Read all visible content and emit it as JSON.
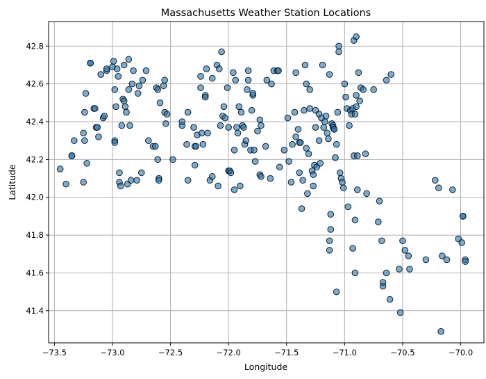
{
  "chart_data": {
    "type": "scatter",
    "title": "Massachusetts Weather Station Locations",
    "xlabel": "Longitude",
    "ylabel": "Latitude",
    "xlim": [
      -73.55,
      -69.8
    ],
    "ylim": [
      41.23,
      42.93
    ],
    "xticks": [
      -73.5,
      -73.0,
      -72.5,
      -72.0,
      -71.5,
      -71.0,
      -70.5,
      -70.0
    ],
    "xtick_labels": [
      "−73.5",
      "−73.0",
      "−72.5",
      "−72.0",
      "−71.5",
      "−71.0",
      "−70.5",
      "−70.0"
    ],
    "yticks": [
      41.4,
      41.6,
      41.8,
      42.0,
      42.2,
      42.4,
      42.6,
      42.8
    ],
    "ytick_labels": [
      "41.4",
      "41.6",
      "41.8",
      "42.0",
      "42.2",
      "42.4",
      "42.6",
      "42.8"
    ],
    "grid": true,
    "marker_fill": "#1f77b4",
    "marker_edge": "#000000",
    "marker_alpha": 0.6,
    "points": [
      [
        -73.45,
        42.15
      ],
      [
        -73.4,
        42.07
      ],
      [
        -73.35,
        42.22
      ],
      [
        -73.35,
        42.22
      ],
      [
        -73.33,
        42.3
      ],
      [
        -73.25,
        42.34
      ],
      [
        -73.25,
        42.08
      ],
      [
        -73.24,
        42.3
      ],
      [
        -73.24,
        42.45
      ],
      [
        -73.23,
        42.55
      ],
      [
        -73.22,
        42.18
      ],
      [
        -73.19,
        42.71
      ],
      [
        -73.19,
        42.71
      ],
      [
        -73.16,
        42.47
      ],
      [
        -73.15,
        42.47
      ],
      [
        -73.14,
        42.37
      ],
      [
        -73.13,
        42.37
      ],
      [
        -73.12,
        42.32
      ],
      [
        -73.1,
        42.65
      ],
      [
        -73.08,
        42.42
      ],
      [
        -73.07,
        42.43
      ],
      [
        -73.05,
        42.67
      ],
      [
        -73.05,
        42.68
      ],
      [
        -73.0,
        42.69
      ],
      [
        -72.99,
        42.72
      ],
      [
        -72.98,
        42.57
      ],
      [
        -72.98,
        42.3
      ],
      [
        -72.98,
        42.29
      ],
      [
        -72.97,
        42.48
      ],
      [
        -72.96,
        42.68
      ],
      [
        -72.95,
        42.64
      ],
      [
        -72.94,
        42.13
      ],
      [
        -72.94,
        42.08
      ],
      [
        -72.93,
        42.06
      ],
      [
        -72.92,
        42.38
      ],
      [
        -72.91,
        42.52
      ],
      [
        -72.9,
        42.51
      ],
      [
        -72.9,
        42.7
      ],
      [
        -72.89,
        42.48
      ],
      [
        -72.88,
        42.45
      ],
      [
        -72.87,
        42.07
      ],
      [
        -72.86,
        42.73
      ],
      [
        -72.86,
        42.57
      ],
      [
        -72.85,
        42.38
      ],
      [
        -72.84,
        42.09
      ],
      [
        -72.83,
        42.6
      ],
      [
        -72.82,
        42.67
      ],
      [
        -72.79,
        42.09
      ],
      [
        -72.78,
        42.55
      ],
      [
        -72.77,
        42.59
      ],
      [
        -72.75,
        42.13
      ],
      [
        -72.74,
        42.62
      ],
      [
        -72.71,
        42.67
      ],
      [
        -72.69,
        42.3
      ],
      [
        -72.65,
        42.27
      ],
      [
        -72.63,
        42.27
      ],
      [
        -72.62,
        42.58
      ],
      [
        -72.61,
        42.57
      ],
      [
        -72.61,
        42.2
      ],
      [
        -72.6,
        42.1
      ],
      [
        -72.6,
        42.09
      ],
      [
        -72.59,
        42.5
      ],
      [
        -72.56,
        42.59
      ],
      [
        -72.55,
        42.45
      ],
      [
        -72.55,
        42.62
      ],
      [
        -72.54,
        42.39
      ],
      [
        -72.53,
        42.44
      ],
      [
        -72.48,
        42.2
      ],
      [
        -72.4,
        42.38
      ],
      [
        -72.4,
        42.4
      ],
      [
        -72.36,
        42.28
      ],
      [
        -72.35,
        42.09
      ],
      [
        -72.35,
        42.45
      ],
      [
        -72.3,
        42.37
      ],
      [
        -72.29,
        42.27
      ],
      [
        -72.29,
        42.17
      ],
      [
        -72.28,
        42.27
      ],
      [
        -72.27,
        42.33
      ],
      [
        -72.24,
        42.58
      ],
      [
        -72.24,
        42.64
      ],
      [
        -72.23,
        42.34
      ],
      [
        -72.22,
        42.28
      ],
      [
        -72.2,
        42.54
      ],
      [
        -72.2,
        42.53
      ],
      [
        -72.19,
        42.68
      ],
      [
        -72.18,
        42.34
      ],
      [
        -72.16,
        42.09
      ],
      [
        -72.14,
        42.63
      ],
      [
        -72.14,
        42.11
      ],
      [
        -72.1,
        42.7
      ],
      [
        -72.09,
        42.06
      ],
      [
        -72.08,
        42.68
      ],
      [
        -72.07,
        42.38
      ],
      [
        -72.06,
        42.77
      ],
      [
        -72.05,
        42.43
      ],
      [
        -72.04,
        42.48
      ],
      [
        -72.03,
        42.42
      ],
      [
        -72.01,
        42.58
      ],
      [
        -72.0,
        42.37
      ],
      [
        -72.0,
        42.14
      ],
      [
        -71.99,
        42.14
      ],
      [
        -71.98,
        42.13
      ],
      [
        -71.96,
        42.66
      ],
      [
        -71.95,
        42.25
      ],
      [
        -71.95,
        42.04
      ],
      [
        -71.94,
        42.62
      ],
      [
        -71.93,
        42.37
      ],
      [
        -71.92,
        42.34
      ],
      [
        -71.91,
        42.48
      ],
      [
        -71.9,
        42.06
      ],
      [
        -71.89,
        42.45
      ],
      [
        -71.88,
        42.38
      ],
      [
        -71.87,
        42.37
      ],
      [
        -71.86,
        42.28
      ],
      [
        -71.85,
        42.3
      ],
      [
        -71.84,
        42.57
      ],
      [
        -71.83,
        42.67
      ],
      [
        -71.83,
        42.62
      ],
      [
        -71.81,
        42.25
      ],
      [
        -71.8,
        42.46
      ],
      [
        -71.79,
        42.54
      ],
      [
        -71.79,
        42.55
      ],
      [
        -71.78,
        42.25
      ],
      [
        -71.77,
        42.19
      ],
      [
        -71.75,
        42.35
      ],
      [
        -71.73,
        42.41
      ],
      [
        -71.73,
        42.12
      ],
      [
        -71.72,
        42.38
      ],
      [
        -71.72,
        42.11
      ],
      [
        -71.68,
        42.27
      ],
      [
        -71.67,
        42.62
      ],
      [
        -71.64,
        42.1
      ],
      [
        -71.63,
        42.6
      ],
      [
        -71.61,
        42.67
      ],
      [
        -71.58,
        42.67
      ],
      [
        -71.57,
        42.67
      ],
      [
        -71.56,
        42.16
      ],
      [
        -71.52,
        42.25
      ],
      [
        -71.49,
        42.42
      ],
      [
        -71.48,
        42.19
      ],
      [
        -71.46,
        42.08
      ],
      [
        -71.45,
        42.28
      ],
      [
        -71.43,
        42.45
      ],
      [
        -71.42,
        42.66
      ],
      [
        -71.42,
        42.32
      ],
      [
        -71.4,
        42.36
      ],
      [
        -71.39,
        42.29
      ],
      [
        -71.39,
        42.13
      ],
      [
        -71.38,
        42.29
      ],
      [
        -71.37,
        41.94
      ],
      [
        -71.36,
        42.09
      ],
      [
        -71.35,
        42.46
      ],
      [
        -71.34,
        42.7
      ],
      [
        -71.33,
        42.6
      ],
      [
        -71.33,
        42.26
      ],
      [
        -71.32,
        42.02
      ],
      [
        -71.31,
        42.23
      ],
      [
        -71.3,
        42.47
      ],
      [
        -71.3,
        42.57
      ],
      [
        -71.28,
        42.14
      ],
      [
        -71.27,
        42.12
      ],
      [
        -71.27,
        42.06
      ],
      [
        -71.26,
        42.17
      ],
      [
        -71.25,
        42.46
      ],
      [
        -71.25,
        42.37
      ],
      [
        -71.24,
        42.16
      ],
      [
        -71.22,
        42.44
      ],
      [
        -71.22,
        42.3
      ],
      [
        -71.21,
        42.18
      ],
      [
        -71.2,
        42.42
      ],
      [
        -71.19,
        42.7
      ],
      [
        -71.18,
        42.37
      ],
      [
        -71.17,
        42.4
      ],
      [
        -71.16,
        42.43
      ],
      [
        -71.15,
        42.34
      ],
      [
        -71.14,
        42.31
      ],
      [
        -71.13,
        42.65
      ],
      [
        -71.13,
        41.72
      ],
      [
        -71.13,
        41.77
      ],
      [
        -71.12,
        41.83
      ],
      [
        -71.12,
        41.91
      ],
      [
        -71.11,
        42.39
      ],
      [
        -71.1,
        42.38
      ],
      [
        -71.1,
        42.37
      ],
      [
        -71.09,
        42.36
      ],
      [
        -71.09,
        42.36
      ],
      [
        -71.08,
        42.21
      ],
      [
        -71.07,
        42.28
      ],
      [
        -71.07,
        41.5
      ],
      [
        -71.06,
        42.45
      ],
      [
        -71.05,
        42.8
      ],
      [
        -71.05,
        42.77
      ],
      [
        -71.04,
        42.13
      ],
      [
        -71.03,
        42.1
      ],
      [
        -71.02,
        42.08
      ],
      [
        -71.01,
        42.05
      ],
      [
        -71.0,
        42.6
      ],
      [
        -70.99,
        42.53
      ],
      [
        -70.98,
        42.47
      ],
      [
        -70.97,
        41.95
      ],
      [
        -70.96,
        42.38
      ],
      [
        -70.95,
        42.46
      ],
      [
        -70.94,
        42.44
      ],
      [
        -70.93,
        42.47
      ],
      [
        -70.93,
        41.73
      ],
      [
        -70.92,
        42.83
      ],
      [
        -70.92,
        42.22
      ],
      [
        -70.91,
        42.44
      ],
      [
        -70.91,
        41.88
      ],
      [
        -70.91,
        41.6
      ],
      [
        -70.9,
        42.85
      ],
      [
        -70.9,
        42.48
      ],
      [
        -70.9,
        42.54
      ],
      [
        -70.89,
        42.22
      ],
      [
        -70.89,
        42.04
      ],
      [
        -70.88,
        42.66
      ],
      [
        -70.87,
        42.51
      ],
      [
        -70.86,
        42.58
      ],
      [
        -70.84,
        42.57
      ],
      [
        -70.82,
        42.23
      ],
      [
        -70.81,
        42.02
      ],
      [
        -70.75,
        42.57
      ],
      [
        -70.71,
        41.87
      ],
      [
        -70.7,
        41.98
      ],
      [
        -70.68,
        41.77
      ],
      [
        -70.67,
        41.53
      ],
      [
        -70.67,
        41.55
      ],
      [
        -70.64,
        41.6
      ],
      [
        -70.64,
        42.62
      ],
      [
        -70.61,
        41.46
      ],
      [
        -70.6,
        42.65
      ],
      [
        -70.53,
        41.62
      ],
      [
        -70.52,
        41.39
      ],
      [
        -70.5,
        41.77
      ],
      [
        -70.48,
        41.72
      ],
      [
        -70.45,
        41.69
      ],
      [
        -70.44,
        41.62
      ],
      [
        -70.3,
        41.67
      ],
      [
        -70.22,
        42.09
      ],
      [
        -70.19,
        42.05
      ],
      [
        -70.17,
        41.29
      ],
      [
        -70.16,
        41.69
      ],
      [
        -70.12,
        41.67
      ],
      [
        -70.07,
        42.04
      ],
      [
        -70.02,
        41.78
      ],
      [
        -69.99,
        41.76
      ],
      [
        -69.98,
        41.9
      ],
      [
        -69.98,
        41.9
      ],
      [
        -69.96,
        41.67
      ],
      [
        -69.96,
        41.66
      ]
    ]
  }
}
